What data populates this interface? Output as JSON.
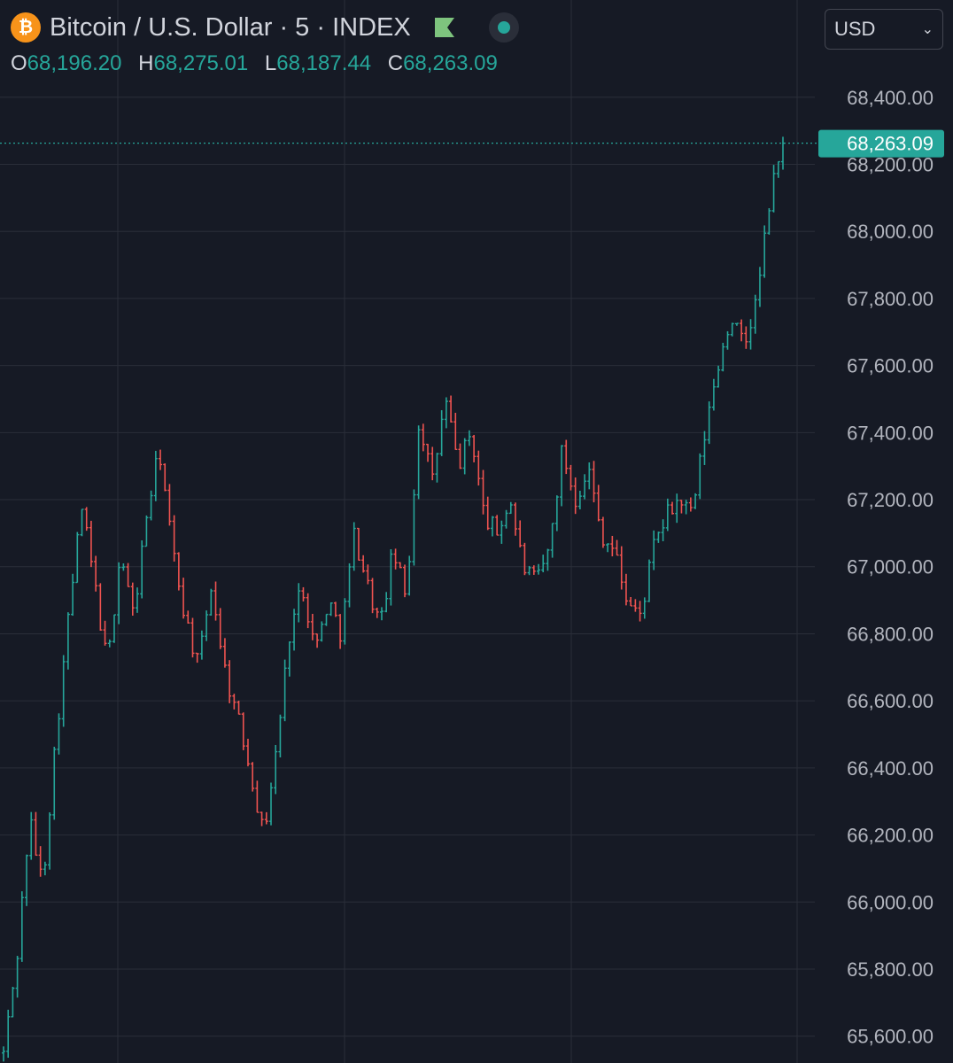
{
  "header": {
    "title": "Bitcoin / U.S. Dollar · 5 · INDEX",
    "coin_symbol": "₿",
    "icons": [
      "bitcoin-icon",
      "flag-icon",
      "market-status-icon"
    ]
  },
  "ohlc": {
    "o_label": "O",
    "o": "68,196.20",
    "h_label": "H",
    "h": "68,275.01",
    "l_label": "L",
    "l": "68,187.44",
    "c_label": "C",
    "c": "68,263.09"
  },
  "currency_select": {
    "value": "USD"
  },
  "colors": {
    "up": "#26a69a",
    "down": "#ef5350",
    "background": "#161a25",
    "grid": "#2a2e39"
  },
  "chart_data": {
    "type": "ohlc",
    "interval": "5",
    "y_ticks": [
      "68,400.00",
      "68,200.00",
      "68,000.00",
      "67,800.00",
      "67,600.00",
      "67,400.00",
      "67,200.00",
      "67,000.00",
      "66,800.00",
      "66,600.00",
      "66,400.00",
      "66,200.00",
      "66,000.00",
      "65,800.00",
      "65,600.00"
    ],
    "y_tick_values": [
      68400,
      68200,
      68000,
      67800,
      67600,
      67400,
      67200,
      67000,
      66800,
      66600,
      66400,
      66200,
      66000,
      65800,
      65600
    ],
    "ylim": [
      65520,
      68690
    ],
    "last_price_label": "68,263.09",
    "last_price": 68263.09,
    "grid": true,
    "price_path": [
      65550,
      65820,
      66250,
      66050,
      66480,
      66850,
      67180,
      66950,
      66700,
      67050,
      66850,
      67150,
      67350,
      67050,
      66850,
      66700,
      66950,
      66700,
      66550,
      66400,
      66200,
      66450,
      66800,
      66950,
      66750,
      66900,
      66800,
      67100,
      66950,
      66820,
      67050,
      66900,
      67450,
      67250,
      67500,
      67300,
      67400,
      67150,
      67100,
      67200,
      67000,
      66950,
      67050,
      67350,
      67200,
      67300,
      67100,
      67050,
      66900,
      66850,
      67050,
      67150,
      67200,
      67150,
      67400,
      67600,
      67750,
      67650,
      67800,
      68100,
      68263.09
    ]
  }
}
